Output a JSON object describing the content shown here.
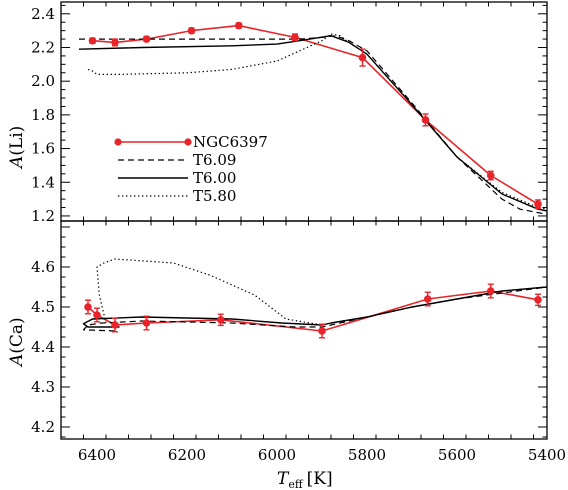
{
  "chart_data": [
    {
      "type": "line",
      "ylabel_main": "A",
      "ylabel_elem": "(Li)",
      "ylim": [
        1.17,
        2.47
      ],
      "xlim": [
        6480,
        5400
      ],
      "yticks": [
        "2.4",
        "2.2",
        "2.0",
        "1.8",
        "1.6",
        "1.4",
        "1.2"
      ],
      "ytick_values": [
        2.4,
        2.2,
        2.0,
        1.8,
        1.6,
        1.4,
        1.2
      ],
      "legend_position": "lower-left",
      "series": [
        {
          "name": "NGC6397",
          "color": "#e8242a",
          "style": "marker-line",
          "x": [
            6410,
            6360,
            6290,
            6190,
            6085,
            5960,
            5810,
            5670,
            5525,
            5420
          ],
          "y": [
            2.24,
            2.23,
            2.25,
            2.3,
            2.33,
            2.26,
            2.14,
            1.77,
            1.44,
            1.27
          ],
          "err": [
            0.015,
            0.02,
            0.015,
            0.015,
            0.015,
            0.02,
            0.05,
            0.035,
            0.025,
            0.025
          ]
        },
        {
          "name": "T6.09",
          "color": "#000000",
          "style": "dashed",
          "x": [
            6440,
            6300,
            6100,
            6000,
            5950,
            5900,
            5870,
            5840,
            5800,
            5700,
            5600,
            5500,
            5460,
            5420,
            5400
          ],
          "y": [
            2.25,
            2.25,
            2.25,
            2.25,
            2.25,
            2.26,
            2.27,
            2.24,
            2.18,
            1.87,
            1.55,
            1.3,
            1.24,
            1.22,
            1.21
          ]
        },
        {
          "name": "T6.00",
          "color": "#000000",
          "style": "solid",
          "x": [
            6440,
            6300,
            6100,
            6000,
            5950,
            5880,
            5840,
            5800,
            5700,
            5600,
            5500,
            5420,
            5400
          ],
          "y": [
            2.19,
            2.2,
            2.21,
            2.22,
            2.24,
            2.27,
            2.23,
            2.16,
            1.86,
            1.55,
            1.33,
            1.24,
            1.23
          ]
        },
        {
          "name": "T5.80",
          "color": "#000000",
          "style": "dotted",
          "x": [
            6420,
            6410,
            6400,
            6350,
            6200,
            6100,
            6000,
            5950,
            5900,
            5880,
            5860,
            5840,
            5800,
            5700,
            5600,
            5500,
            5420,
            5400
          ],
          "y": [
            2.07,
            2.06,
            2.04,
            2.04,
            2.05,
            2.07,
            2.12,
            2.18,
            2.24,
            2.28,
            2.27,
            2.23,
            2.16,
            1.86,
            1.55,
            1.34,
            1.25,
            1.24
          ]
        }
      ]
    },
    {
      "type": "line",
      "ylabel_main": "A",
      "ylabel_elem": "(Ca)",
      "ylim": [
        4.17,
        4.715
      ],
      "xlim": [
        6480,
        5400
      ],
      "yticks": [
        "4.6",
        "4.5",
        "4.4",
        "4.3",
        "4.2"
      ],
      "ytick_values": [
        4.6,
        4.5,
        4.4,
        4.3,
        4.2
      ],
      "series": [
        {
          "name": "NGC6397",
          "color": "#e8242a",
          "style": "marker-line",
          "x": [
            6420,
            6400,
            6360,
            6290,
            6125,
            5900,
            5665,
            5525,
            5420
          ],
          "y": [
            4.5,
            4.48,
            4.455,
            4.46,
            4.468,
            4.44,
            4.52,
            4.54,
            4.518
          ],
          "err": [
            0.017,
            0.017,
            0.017,
            0.017,
            0.014,
            0.017,
            0.017,
            0.017,
            0.014
          ]
        },
        {
          "name": "T6.09",
          "color": "#000000",
          "style": "dashed",
          "x": [
            6360,
            6430,
            6420,
            6390,
            6300,
            6100,
            5960,
            5900,
            5880,
            5800,
            5700,
            5600,
            5500,
            5400
          ],
          "y": [
            4.44,
            4.443,
            4.455,
            4.46,
            4.465,
            4.46,
            4.45,
            4.45,
            4.455,
            4.475,
            4.5,
            4.52,
            4.535,
            4.55
          ]
        },
        {
          "name": "T6.00",
          "color": "#000000",
          "style": "solid",
          "x": [
            6350,
            6420,
            6430,
            6410,
            6300,
            6100,
            5990,
            5900,
            5880,
            5800,
            5700,
            5600,
            5500,
            5400
          ],
          "y": [
            4.45,
            4.45,
            4.458,
            4.47,
            4.475,
            4.47,
            4.46,
            4.455,
            4.46,
            4.475,
            4.5,
            4.52,
            4.54,
            4.55
          ]
        },
        {
          "name": "T5.80",
          "color": "#000000",
          "style": "dotted",
          "x": [
            6380,
            6395,
            6400,
            6385,
            6360,
            6230,
            6150,
            6050,
            5980,
            5900,
            5880,
            5800,
            5700,
            5600,
            5500,
            5400
          ],
          "y": [
            4.46,
            4.53,
            4.6,
            4.61,
            4.62,
            4.61,
            4.58,
            4.53,
            4.47,
            4.455,
            4.46,
            4.475,
            4.5,
            4.52,
            4.54,
            4.55
          ]
        }
      ]
    }
  ],
  "xaxis": {
    "label_main": "T",
    "label_sub": "eff",
    "label_unit": "[K]",
    "ticks": [
      "6400",
      "6200",
      "6000",
      "5800",
      "5600",
      "5400"
    ],
    "tick_values": [
      6400,
      6200,
      6000,
      5800,
      5600,
      5400
    ]
  }
}
